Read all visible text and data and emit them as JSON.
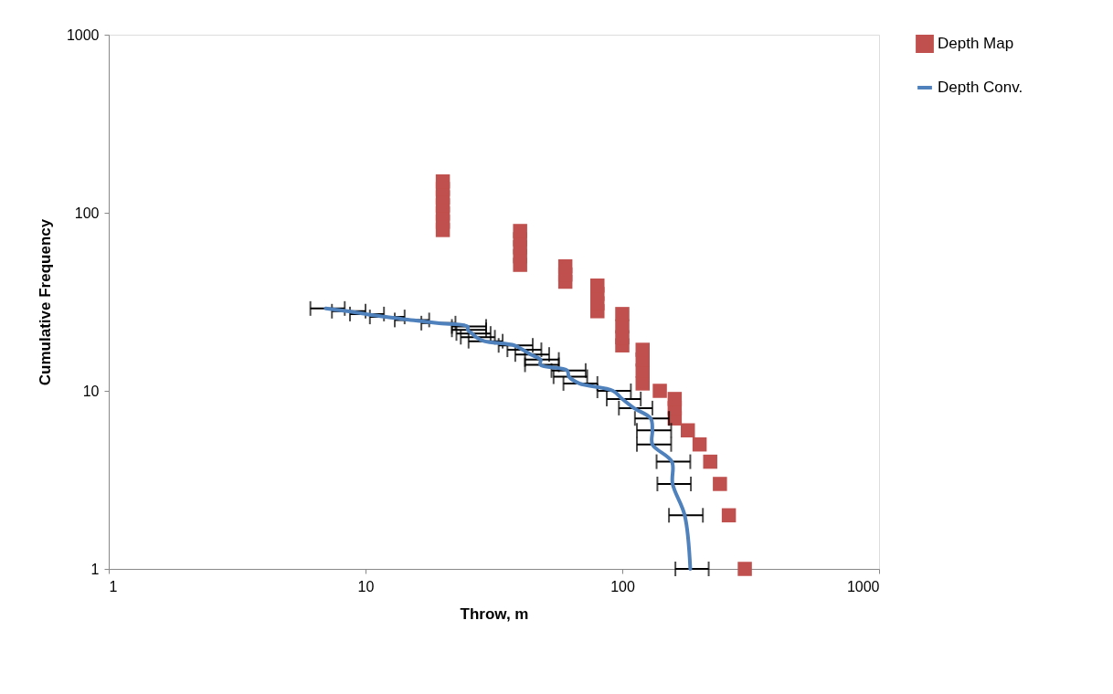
{
  "chart_data": {
    "type": "scatter",
    "xlabel": "Throw, m",
    "ylabel": "Cumulative Frequency",
    "log": "xy",
    "xlim": [
      1,
      1000
    ],
    "ylim": [
      1,
      1000
    ],
    "xticks": [
      1,
      10,
      100,
      1000
    ],
    "yticks": [
      1,
      10,
      100,
      1000
    ],
    "grid": false,
    "legend": "right",
    "series": [
      {
        "name": "Depth Map",
        "marker": "square",
        "color": "#c0504d",
        "x": [
          20,
          20,
          20,
          20,
          20,
          20,
          20,
          40,
          40,
          40,
          40,
          40,
          60,
          60,
          60,
          80,
          80,
          80,
          80,
          100,
          100,
          100,
          100,
          120,
          120,
          120,
          120,
          140,
          160,
          160,
          160,
          180,
          200,
          220,
          240,
          260,
          300
        ],
        "values": [
          80,
          89,
          99,
          110,
          122,
          136,
          150,
          51,
          57,
          64,
          71,
          79,
          41,
          45,
          50,
          28,
          31,
          35,
          39,
          18,
          20,
          23,
          27,
          11,
          13,
          15,
          17,
          10,
          7,
          8,
          9,
          6,
          5,
          4,
          3,
          2,
          1
        ]
      },
      {
        "name": "Depth Conv.",
        "type": "line",
        "line_style": "solid",
        "marker": "none",
        "color": "#4f81bd",
        "x": [
          7,
          8.5,
          10,
          12,
          15,
          19,
          25,
          25,
          26,
          27,
          29,
          38,
          41,
          44,
          48,
          48,
          61,
          62,
          68,
          92,
          100,
          111,
          129,
          131,
          131,
          156,
          157,
          175,
          184
        ],
        "values": [
          29,
          28,
          27,
          26,
          25,
          24,
          23,
          22,
          21,
          20,
          19,
          18,
          17,
          16,
          15,
          14,
          13,
          12,
          11,
          10,
          9,
          8,
          7,
          6,
          5,
          4,
          3,
          2,
          1
        ],
        "xerrors": [
          [
            6.1,
            8.3
          ],
          [
            7.4,
            10
          ],
          [
            8.7,
            11.8
          ],
          [
            10.4,
            14.2
          ],
          [
            13,
            17.7
          ],
          [
            16.5,
            22.4
          ],
          [
            21.7,
            29.5
          ],
          [
            21.7,
            29.5
          ],
          [
            22.6,
            30.7
          ],
          [
            23.5,
            31.9
          ],
          [
            25.2,
            34.2
          ],
          [
            33,
            44.8
          ],
          [
            35.7,
            48.4
          ],
          [
            38.3,
            51.9
          ],
          [
            41.8,
            56.6
          ],
          [
            41.8,
            56.6
          ],
          [
            53,
            72
          ],
          [
            54,
            73
          ],
          [
            59,
            80
          ],
          [
            80,
            108
          ],
          [
            87,
            118
          ],
          [
            97,
            131
          ],
          [
            112,
            152
          ],
          [
            114,
            155
          ],
          [
            114,
            155
          ],
          [
            136,
            184
          ],
          [
            137,
            185
          ],
          [
            152,
            206
          ],
          [
            161,
            217
          ]
        ]
      }
    ]
  }
}
